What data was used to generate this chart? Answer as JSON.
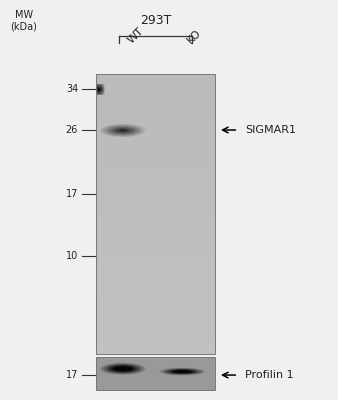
{
  "bg_color": "#f0f0ee",
  "title_293T": "293T",
  "wt_label": "WT",
  "ko_label": "KO",
  "mw_label": "MW\n(kDa)",
  "mw_markers": [
    34,
    26,
    17,
    10
  ],
  "mw2_markers": [
    17
  ],
  "band1_label": "SIGMAR1",
  "band2_label": "Profilin 1",
  "line_color": "#333333",
  "text_color": "#222222",
  "gel1_color": "#b5b5b0",
  "gel2_color": "#909090"
}
